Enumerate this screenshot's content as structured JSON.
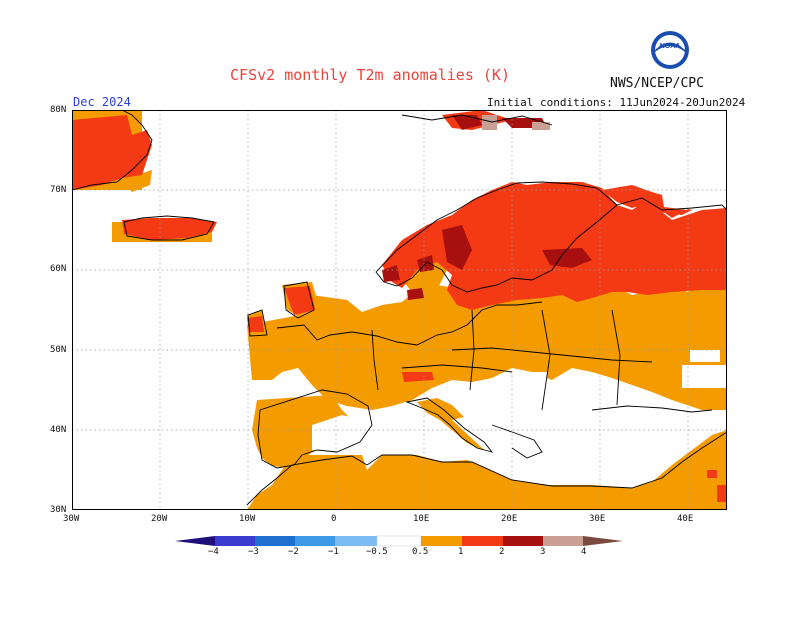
{
  "header": {
    "title": "CFSv2 monthly T2m anomalies (K)",
    "agency": "NWS/NCEP/CPC",
    "logo_text": "NOAA",
    "forecast_month": "Dec 2024",
    "initial_conditions": "Initial conditions: 11Jun2024-20Jun2024"
  },
  "axes": {
    "lat_labels": [
      "80N",
      "70N",
      "60N",
      "50N",
      "40N",
      "30N"
    ],
    "lon_labels": [
      "30W",
      "20W",
      "10W",
      "0",
      "10E",
      "20E",
      "30E",
      "40E"
    ]
  },
  "colorbar": {
    "labels": [
      "−4",
      "−3",
      "−2",
      "−1",
      "−0.5",
      "0.5",
      "1",
      "2",
      "3",
      "4"
    ],
    "colors": {
      "lt_m4": "#1e0f7a",
      "m4_m3": "#3b3bcf",
      "m3_m2": "#1f6fd1",
      "m2_m1": "#3d9ae8",
      "m1_m05": "#7dbcf3",
      "neutral": "#ffffff",
      "p05_p1": "#f49b00",
      "p1_p2": "#f43a14",
      "p2_p3": "#a80f0f",
      "p3_p4": "#c9a093",
      "gt_p4": "#7a4a40"
    }
  },
  "map_colors": {
    "warm_05_1": "#f49b00",
    "warm_1_2": "#f43a14",
    "warm_2_3": "#a80f0f",
    "warm_3_4": "#c9a093",
    "land_outline": "#000000",
    "grid": "#9a9a9a"
  }
}
